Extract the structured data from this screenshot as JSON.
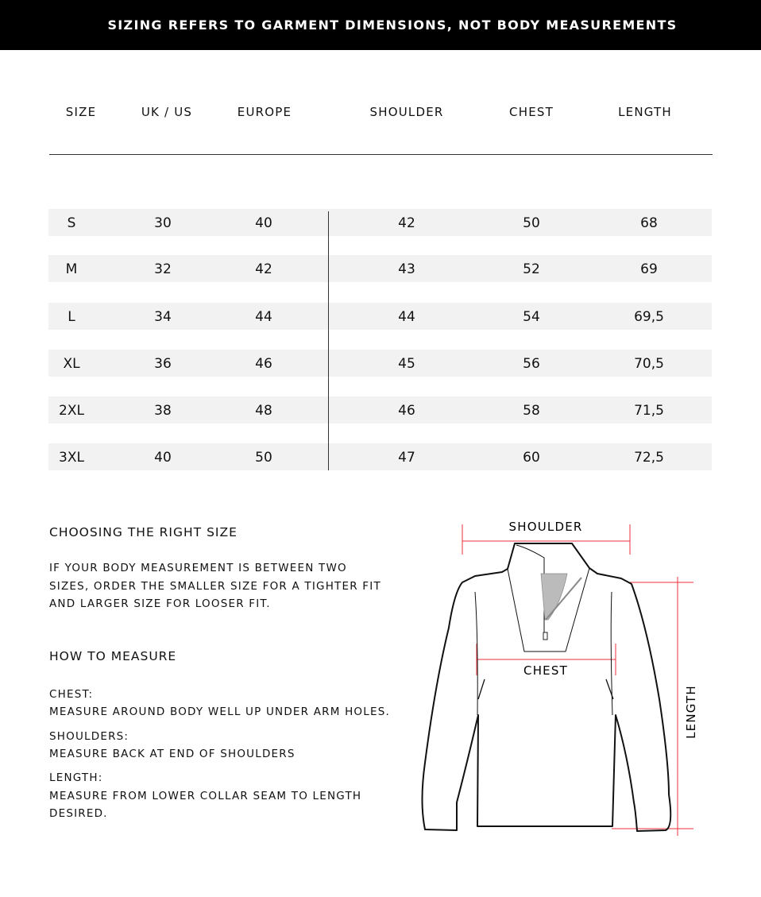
{
  "banner": "SIZING REFERS TO GARMENT DIMENSIONS, NOT BODY MEASUREMENTS",
  "table": {
    "headers": [
      "SIZE",
      "UK / US",
      "EUROPE",
      "SHOULDER",
      "CHEST",
      "LENGTH"
    ],
    "rows": [
      [
        "S",
        "30",
        "40",
        "42",
        "50",
        "68"
      ],
      [
        "M",
        "32",
        "42",
        "43",
        "52",
        "69"
      ],
      [
        "L",
        "34",
        "44",
        "44",
        "54",
        "69,5"
      ],
      [
        "XL",
        "36",
        "46",
        "45",
        "56",
        "70,5"
      ],
      [
        "2XL",
        "38",
        "48",
        "46",
        "58",
        "71,5"
      ],
      [
        "3XL",
        "40",
        "50",
        "47",
        "60",
        "72,5"
      ]
    ]
  },
  "choosing": {
    "title": "CHOOSING THE RIGHT SIZE",
    "lines": [
      "IF YOUR BODY MEASUREMENT IS BETWEEN TWO",
      "SIZES, ORDER THE SMALLER SIZE FOR A TIGHTER FIT",
      "AND LARGER SIZE FOR LOOSER FIT."
    ]
  },
  "how": {
    "title": "HOW TO MEASURE",
    "items": [
      {
        "label": "CHEST:",
        "lines": [
          "MEASURE AROUND BODY WELL UP UNDER ARM HOLES."
        ]
      },
      {
        "label": "SHOULDERS:",
        "lines": [
          "MEASURE BACK AT END OF SHOULDERS"
        ]
      },
      {
        "label": "LENGTH:",
        "lines": [
          "MEASURE FROM LOWER COLLAR SEAM TO LENGTH",
          "DESIRED."
        ]
      }
    ]
  },
  "diagram": {
    "shoulder": "SHOULDER",
    "chest": "CHEST",
    "length": "LENGTH",
    "measure_color": "#e8323c"
  }
}
